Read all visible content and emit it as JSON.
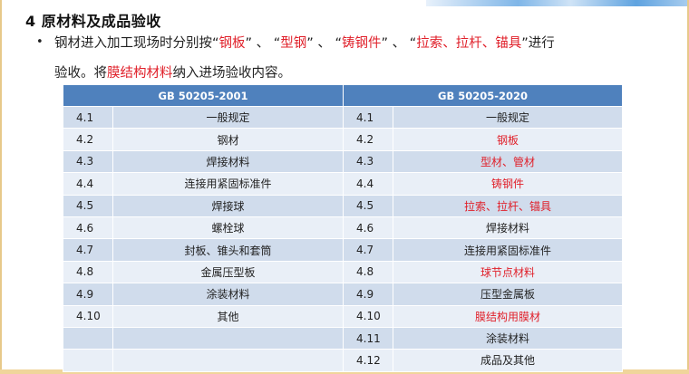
{
  "title": "4 原材料及成品验收",
  "bullet_glyph": "•",
  "paragraph": {
    "l1_a": "钢材进入加工现场时分别按",
    "q1_open": "“",
    "item1": "钢板",
    "q1_close": "”",
    "sep1": " 、 ",
    "q2_open": "“",
    "item2": "型钢",
    "q2_close": "”",
    "sep2": " 、 ",
    "q3_open": "“",
    "item3": "铸钢件",
    "q3_close": "”",
    "sep3": " 、 ",
    "q4_open": "“",
    "item4": "拉索、拉杆、锚具",
    "q4_close": "”",
    "l1_end": "进行",
    "l2_a": "验收。将",
    "l2_red": "膜结构材料",
    "l2_b": "纳入进场验收内容。"
  },
  "table": {
    "left_header": "GB 50205-2001",
    "right_header": "GB 50205-2020",
    "rows": [
      {
        "ln": "4.1",
        "lt": "一般规定",
        "rn": "4.1",
        "rt": "一般规定",
        "red": false
      },
      {
        "ln": "4.2",
        "lt": "钢材",
        "rn": "4.2",
        "rt": "钢板",
        "red": true
      },
      {
        "ln": "4.3",
        "lt": "焊接材料",
        "rn": "4.3",
        "rt": "型材、管材",
        "red": true
      },
      {
        "ln": "4.4",
        "lt": "连接用紧固标准件",
        "rn": "4.4",
        "rt": "铸钢件",
        "red": true
      },
      {
        "ln": "4.5",
        "lt": "焊接球",
        "rn": "4.5",
        "rt": "拉索、拉杆、锚具",
        "red": true
      },
      {
        "ln": "4.6",
        "lt": "螺栓球",
        "rn": "4.6",
        "rt": "焊接材料",
        "red": false
      },
      {
        "ln": "4.7",
        "lt": "封板、锥头和套筒",
        "rn": "4.7",
        "rt": "连接用紧固标准件",
        "red": false
      },
      {
        "ln": "4.8",
        "lt": "金属压型板",
        "rn": "4.8",
        "rt": "球节点材料",
        "red": true
      },
      {
        "ln": "4.9",
        "lt": "涂装材料",
        "rn": "4.9",
        "rt": "压型金属板",
        "red": false
      },
      {
        "ln": "4.10",
        "lt": "其他",
        "rn": "4.10",
        "rt": "膜结构用膜材",
        "red": true
      },
      {
        "ln": "",
        "lt": "",
        "rn": "4.11",
        "rt": "涂装材料",
        "red": false
      },
      {
        "ln": "",
        "lt": "",
        "rn": "4.12",
        "rt": "成品及其他",
        "red": false
      }
    ]
  },
  "colors": {
    "header_bg": "#4f81bd",
    "row_odd": "#d0dcec",
    "row_even": "#e9eff7",
    "highlight_red": "#e0202a"
  }
}
